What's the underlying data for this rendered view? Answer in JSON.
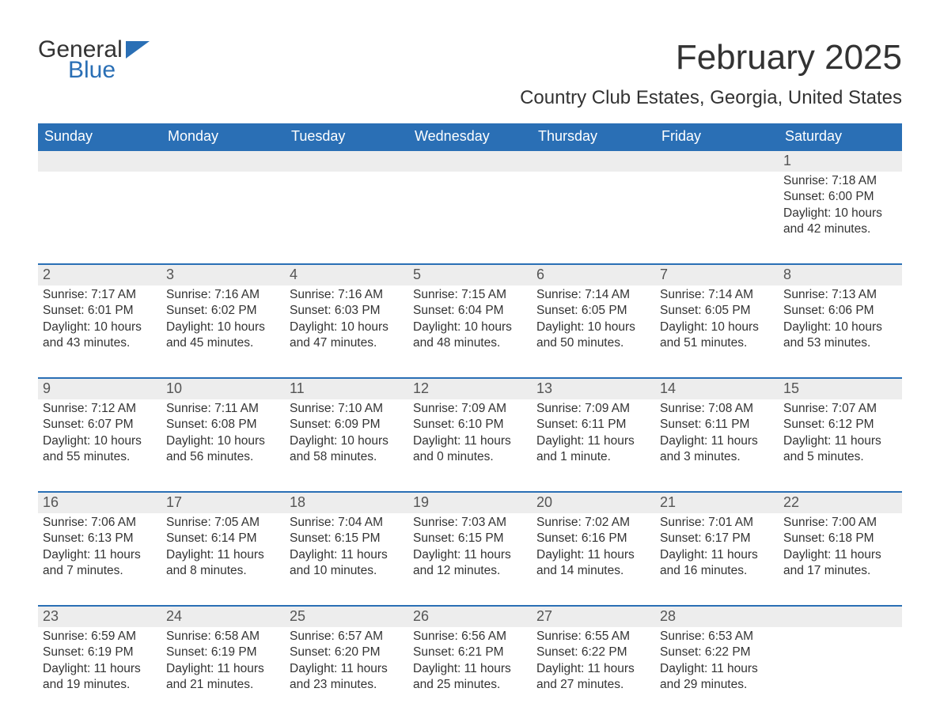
{
  "logo": {
    "general": "General",
    "blue": "Blue",
    "icon_color": "#2a6fb5"
  },
  "title": "February 2025",
  "subtitle": "Country Club Estates, Georgia, United States",
  "colors": {
    "header_bg": "#2a6fb5",
    "header_text": "#ffffff",
    "daynum_bg": "#ededed",
    "week_divider": "#2a6fb5",
    "body_text": "#333333",
    "page_bg": "#ffffff"
  },
  "weekdays": [
    "Sunday",
    "Monday",
    "Tuesday",
    "Wednesday",
    "Thursday",
    "Friday",
    "Saturday"
  ],
  "weeks": [
    [
      null,
      null,
      null,
      null,
      null,
      null,
      {
        "n": "1",
        "sunrise": "7:18 AM",
        "sunset": "6:00 PM",
        "daylight": "10 hours and 42 minutes."
      }
    ],
    [
      {
        "n": "2",
        "sunrise": "7:17 AM",
        "sunset": "6:01 PM",
        "daylight": "10 hours and 43 minutes."
      },
      {
        "n": "3",
        "sunrise": "7:16 AM",
        "sunset": "6:02 PM",
        "daylight": "10 hours and 45 minutes."
      },
      {
        "n": "4",
        "sunrise": "7:16 AM",
        "sunset": "6:03 PM",
        "daylight": "10 hours and 47 minutes."
      },
      {
        "n": "5",
        "sunrise": "7:15 AM",
        "sunset": "6:04 PM",
        "daylight": "10 hours and 48 minutes."
      },
      {
        "n": "6",
        "sunrise": "7:14 AM",
        "sunset": "6:05 PM",
        "daylight": "10 hours and 50 minutes."
      },
      {
        "n": "7",
        "sunrise": "7:14 AM",
        "sunset": "6:05 PM",
        "daylight": "10 hours and 51 minutes."
      },
      {
        "n": "8",
        "sunrise": "7:13 AM",
        "sunset": "6:06 PM",
        "daylight": "10 hours and 53 minutes."
      }
    ],
    [
      {
        "n": "9",
        "sunrise": "7:12 AM",
        "sunset": "6:07 PM",
        "daylight": "10 hours and 55 minutes."
      },
      {
        "n": "10",
        "sunrise": "7:11 AM",
        "sunset": "6:08 PM",
        "daylight": "10 hours and 56 minutes."
      },
      {
        "n": "11",
        "sunrise": "7:10 AM",
        "sunset": "6:09 PM",
        "daylight": "10 hours and 58 minutes."
      },
      {
        "n": "12",
        "sunrise": "7:09 AM",
        "sunset": "6:10 PM",
        "daylight": "11 hours and 0 minutes."
      },
      {
        "n": "13",
        "sunrise": "7:09 AM",
        "sunset": "6:11 PM",
        "daylight": "11 hours and 1 minute."
      },
      {
        "n": "14",
        "sunrise": "7:08 AM",
        "sunset": "6:11 PM",
        "daylight": "11 hours and 3 minutes."
      },
      {
        "n": "15",
        "sunrise": "7:07 AM",
        "sunset": "6:12 PM",
        "daylight": "11 hours and 5 minutes."
      }
    ],
    [
      {
        "n": "16",
        "sunrise": "7:06 AM",
        "sunset": "6:13 PM",
        "daylight": "11 hours and 7 minutes."
      },
      {
        "n": "17",
        "sunrise": "7:05 AM",
        "sunset": "6:14 PM",
        "daylight": "11 hours and 8 minutes."
      },
      {
        "n": "18",
        "sunrise": "7:04 AM",
        "sunset": "6:15 PM",
        "daylight": "11 hours and 10 minutes."
      },
      {
        "n": "19",
        "sunrise": "7:03 AM",
        "sunset": "6:15 PM",
        "daylight": "11 hours and 12 minutes."
      },
      {
        "n": "20",
        "sunrise": "7:02 AM",
        "sunset": "6:16 PM",
        "daylight": "11 hours and 14 minutes."
      },
      {
        "n": "21",
        "sunrise": "7:01 AM",
        "sunset": "6:17 PM",
        "daylight": "11 hours and 16 minutes."
      },
      {
        "n": "22",
        "sunrise": "7:00 AM",
        "sunset": "6:18 PM",
        "daylight": "11 hours and 17 minutes."
      }
    ],
    [
      {
        "n": "23",
        "sunrise": "6:59 AM",
        "sunset": "6:19 PM",
        "daylight": "11 hours and 19 minutes."
      },
      {
        "n": "24",
        "sunrise": "6:58 AM",
        "sunset": "6:19 PM",
        "daylight": "11 hours and 21 minutes."
      },
      {
        "n": "25",
        "sunrise": "6:57 AM",
        "sunset": "6:20 PM",
        "daylight": "11 hours and 23 minutes."
      },
      {
        "n": "26",
        "sunrise": "6:56 AM",
        "sunset": "6:21 PM",
        "daylight": "11 hours and 25 minutes."
      },
      {
        "n": "27",
        "sunrise": "6:55 AM",
        "sunset": "6:22 PM",
        "daylight": "11 hours and 27 minutes."
      },
      {
        "n": "28",
        "sunrise": "6:53 AM",
        "sunset": "6:22 PM",
        "daylight": "11 hours and 29 minutes."
      },
      null
    ]
  ],
  "labels": {
    "sunrise": "Sunrise:",
    "sunset": "Sunset:",
    "daylight": "Daylight:"
  }
}
